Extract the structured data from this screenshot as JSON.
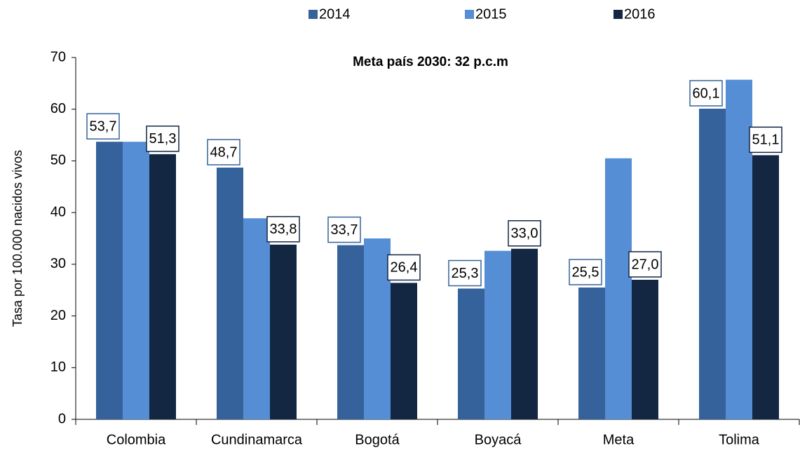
{
  "chart_data": {
    "type": "bar",
    "title": "Meta país 2030: 32 p.c.m",
    "y_label": "Tasa por 100.000 nacidos vivos",
    "categories": [
      "Colombia",
      "Cundinamarca",
      "Bogotá",
      "Boyacá",
      "Meta",
      "Tolima"
    ],
    "series": [
      {
        "name": "2014",
        "color": "#35629a",
        "values": [
          53.7,
          48.7,
          33.7,
          25.3,
          25.5,
          60.1
        ],
        "value_labels": [
          "53,7",
          "48,7",
          "33,7",
          "25,3",
          "25,5",
          "60,1"
        ]
      },
      {
        "name": "2015",
        "color": "#558ed5",
        "values": [
          53.7,
          38.9,
          35.0,
          32.6,
          50.5,
          65.7
        ]
      },
      {
        "name": "2016",
        "color": "#132743",
        "values": [
          51.3,
          33.8,
          26.4,
          33.0,
          27.0,
          51.1
        ],
        "value_labels": [
          "51,3",
          "33,8",
          "26,4",
          "33,0",
          "27,0",
          "51,1"
        ]
      }
    ],
    "ylim": [
      0,
      70
    ],
    "yticks": [
      0,
      10,
      20,
      30,
      40,
      50,
      60,
      70
    ],
    "grid": false,
    "legend": "top"
  }
}
